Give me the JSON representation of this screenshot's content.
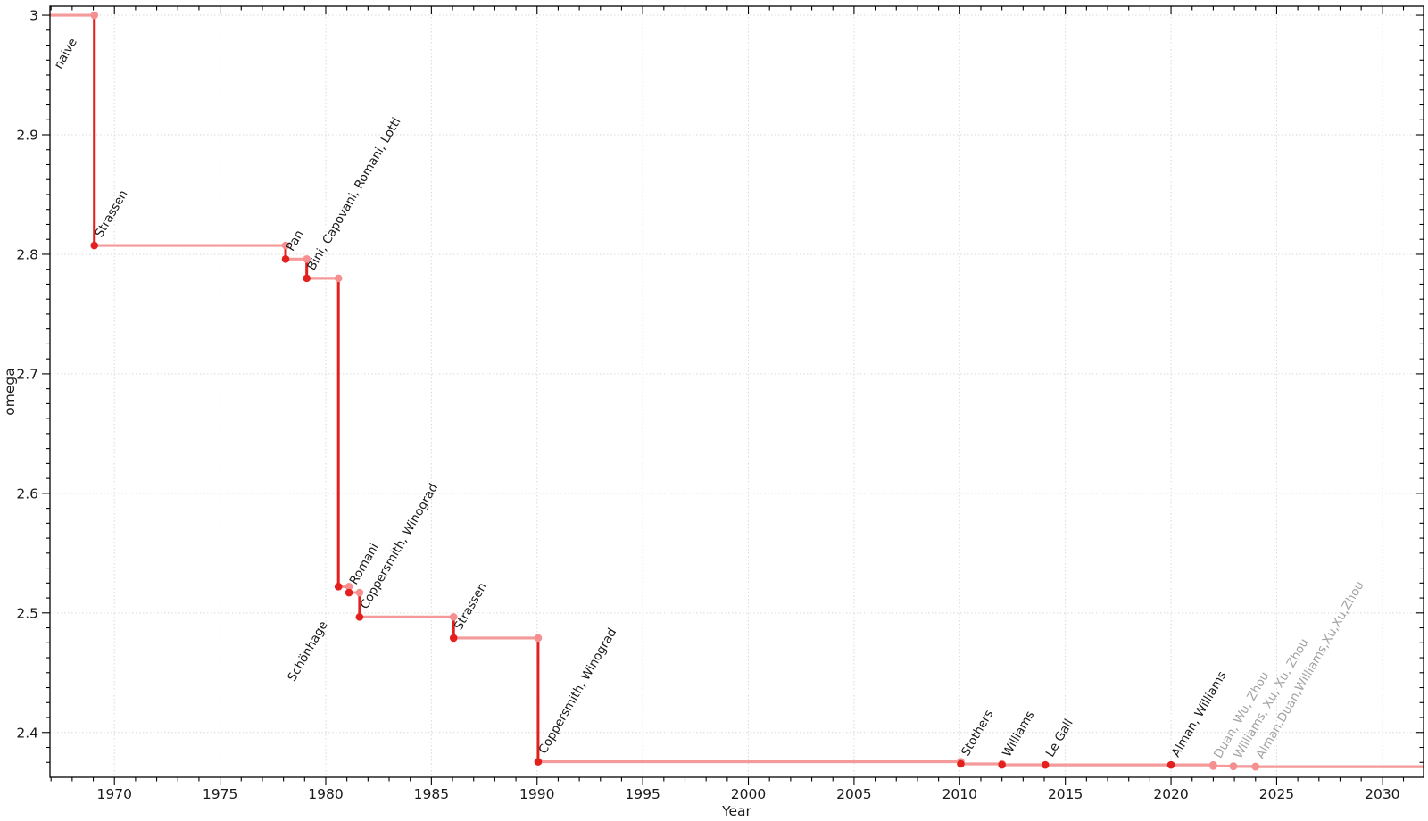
{
  "figure": {
    "background": "#ffffff",
    "xlabel": "Year",
    "ylabel": "omega"
  },
  "colors": {
    "step_line_light": "#f49a9a",
    "step_line_dark": "#e3201e",
    "marker_dark": "#e3201e",
    "marker_light": "#f58f90",
    "label_black": "#1a1a1a",
    "label_gray": "#a3a3a3",
    "grid": "#d9d9d9",
    "axis": "#000000",
    "tick_label": "#1a1a1a"
  },
  "chart_data": {
    "type": "line",
    "step_style": "post",
    "title": "",
    "xlabel": "Year",
    "ylabel": "omega",
    "xlim": [
      1966.95,
      2031.95
    ],
    "ylim": [
      2.3625,
      3.0075
    ],
    "grid": true,
    "annotation_rotation_deg": 60,
    "x_major_ticks": [
      1970,
      1975,
      1980,
      1985,
      1990,
      1995,
      2000,
      2005,
      2010,
      2015,
      2020,
      2025,
      2030
    ],
    "x_tick_labels": [
      "1970",
      "1975",
      "1980",
      "1985",
      "1990",
      "1995",
      "2000",
      "2005",
      "2010",
      "2015",
      "2020",
      "2025",
      "2030"
    ],
    "x_minor_step": 1,
    "y_major_ticks": [
      2.4,
      2.5,
      2.6,
      2.7,
      2.8,
      2.9,
      3.0
    ],
    "y_tick_labels": [
      "2.4",
      "2.5",
      "2.6",
      "2.7",
      "2.8",
      "2.9",
      "3"
    ],
    "y_minor_step": 0.0125,
    "initial_value": {
      "label": "naive",
      "omega": 3.0,
      "label_dx": 12,
      "label_dy": 61
    },
    "points": [
      {
        "label": "Strassen",
        "year": 1969.05,
        "omega": 2.8074,
        "recent": false
      },
      {
        "label": "Pan",
        "year": 1978.1,
        "omega": 2.796,
        "recent": false
      },
      {
        "label": "Bini, Capovani, Romani, Lotti",
        "year": 1979.1,
        "omega": 2.7799,
        "recent": false
      },
      {
        "label": "Schönhage",
        "year": 1980.6,
        "omega": 2.522,
        "recent": false,
        "label_anchor": "end",
        "label_dx": -12,
        "label_dy": 42
      },
      {
        "label": "Romani",
        "year": 1981.1,
        "omega": 2.517,
        "recent": false
      },
      {
        "label": "Coppersmith, Winograd",
        "year": 1981.6,
        "omega": 2.4966,
        "recent": false
      },
      {
        "label": "Strassen",
        "year": 1986.05,
        "omega": 2.479,
        "recent": false
      },
      {
        "label": "Coppersmith, Winograd",
        "year": 1990.05,
        "omega": 2.3755,
        "recent": false
      },
      {
        "label": "Stothers",
        "year": 2010.05,
        "omega": 2.3737,
        "recent": false
      },
      {
        "label": "Williams",
        "year": 2012.0,
        "omega": 2.37293,
        "recent": false
      },
      {
        "label": "Le Gall",
        "year": 2014.05,
        "omega": 2.3728639,
        "recent": false
      },
      {
        "label": "Alman, Williams",
        "year": 2020.0,
        "omega": 2.3728596,
        "recent": false
      },
      {
        "label": "Duan, Wu, Zhou",
        "year": 2022.0,
        "omega": 2.371866,
        "recent": true
      },
      {
        "label": "Williams, Xu, Xu, Zhou",
        "year": 2022.95,
        "omega": 2.371552,
        "recent": true
      },
      {
        "label": "Alman,Duan,Williams,Xu,Xu,Zhou",
        "year": 2024.0,
        "omega": 2.371339,
        "recent": true
      }
    ]
  }
}
